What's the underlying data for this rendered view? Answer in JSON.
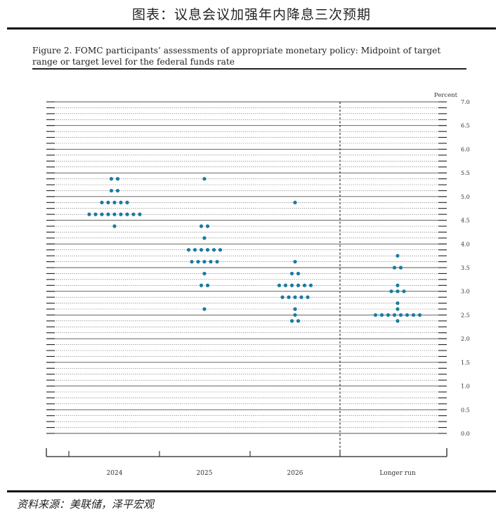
{
  "header": {
    "title": "图表：议息会议加强年内降息三次预期"
  },
  "figure": {
    "caption": "Figure 2. FOMC participants’ assessments of appropriate monetary policy: Midpoint of target range or target level for the federal funds rate"
  },
  "footer": {
    "source": "资料来源：美联储，泽平宏观"
  },
  "chart_data": {
    "type": "scatter",
    "ylabel": "Percent",
    "ylim": [
      0,
      7
    ],
    "y_step": 0.125,
    "y_ticks": [
      "0.0",
      "0.5",
      "1.0",
      "1.5",
      "2.0",
      "2.5",
      "3.0",
      "3.5",
      "4.0",
      "4.5",
      "5.0",
      "5.5",
      "6.0",
      "6.5",
      "7.0"
    ],
    "categories": [
      "2024",
      "2025",
      "2026",
      "Longer run"
    ],
    "grid": true,
    "series": [
      {
        "category": "2024",
        "points": [
          {
            "y": 5.375,
            "count": 2
          },
          {
            "y": 5.125,
            "count": 2
          },
          {
            "y": 4.875,
            "count": 5
          },
          {
            "y": 4.625,
            "count": 9
          },
          {
            "y": 4.375,
            "count": 1
          }
        ]
      },
      {
        "category": "2025",
        "points": [
          {
            "y": 5.375,
            "count": 1
          },
          {
            "y": 4.375,
            "count": 2
          },
          {
            "y": 4.125,
            "count": 1
          },
          {
            "y": 3.875,
            "count": 6
          },
          {
            "y": 3.625,
            "count": 5
          },
          {
            "y": 3.375,
            "count": 1
          },
          {
            "y": 3.125,
            "count": 2
          },
          {
            "y": 2.625,
            "count": 1
          }
        ]
      },
      {
        "category": "2026",
        "points": [
          {
            "y": 4.875,
            "count": 1
          },
          {
            "y": 3.625,
            "count": 1
          },
          {
            "y": 3.375,
            "count": 2
          },
          {
            "y": 3.125,
            "count": 6
          },
          {
            "y": 2.875,
            "count": 5
          },
          {
            "y": 2.625,
            "count": 1
          },
          {
            "y": 2.5,
            "count": 1
          },
          {
            "y": 2.375,
            "count": 2
          }
        ]
      },
      {
        "category": "Longer run",
        "points": [
          {
            "y": 3.75,
            "count": 1
          },
          {
            "y": 3.5,
            "count": 2
          },
          {
            "y": 3.125,
            "count": 1
          },
          {
            "y": 3.0,
            "count": 3
          },
          {
            "y": 2.75,
            "count": 1
          },
          {
            "y": 2.625,
            "count": 1
          },
          {
            "y": 2.5,
            "count": 8
          },
          {
            "y": 2.375,
            "count": 1
          }
        ]
      }
    ],
    "colors": {
      "dot": "#1a7aa0",
      "grid": "#555555",
      "axis": "#222222"
    }
  }
}
